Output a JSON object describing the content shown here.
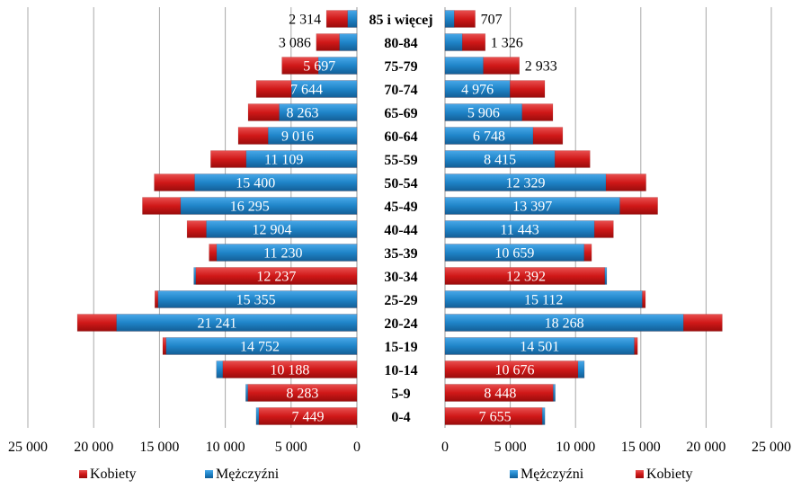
{
  "chart_data": {
    "type": "bar",
    "categories": [
      "0-4",
      "5-9",
      "10-14",
      "15-19",
      "20-24",
      "25-29",
      "30-34",
      "35-39",
      "40-44",
      "45-49",
      "50-54",
      "55-59",
      "60-64",
      "65-69",
      "70-74",
      "75-79",
      "80-84",
      "85 i więcej"
    ],
    "left_panel": {
      "labeled_series": "Kobiety",
      "series": [
        {
          "name": "Kobiety",
          "values": [
            7449,
            8283,
            10188,
            14752,
            21241,
            15355,
            12237,
            11230,
            12904,
            16295,
            15400,
            11109,
            9016,
            8263,
            7644,
            5697,
            3086,
            2314
          ]
        },
        {
          "name": "Mężczyźni",
          "values": [
            7655,
            8448,
            10676,
            14501,
            18268,
            15112,
            12392,
            10659,
            11443,
            13397,
            12329,
            8415,
            6748,
            5906,
            4976,
            2933,
            1326,
            707
          ]
        }
      ],
      "value_labels": [
        "7 449",
        "8 283",
        "10 188",
        "14 752",
        "21 241",
        "15 355",
        "12 237",
        "11 230",
        "12 904",
        "16 295",
        "15 400",
        "11 109",
        "9 016",
        "8 263",
        "7 644",
        "5 697",
        "3 086",
        "2 314"
      ],
      "xlim": [
        0,
        25000
      ],
      "x_reversed": true,
      "ticks": [
        "25 000",
        "20 000",
        "15 000",
        "10 000",
        "5 000",
        "0"
      ],
      "legend": [
        "Kobiety",
        "Mężczyźni"
      ]
    },
    "right_panel": {
      "labeled_series": "Mężczyźni",
      "series": [
        {
          "name": "Mężczyźni",
          "values": [
            7655,
            8448,
            10676,
            14501,
            18268,
            15112,
            12392,
            10659,
            11443,
            13397,
            12329,
            8415,
            6748,
            5906,
            4976,
            2933,
            1326,
            707
          ]
        },
        {
          "name": "Kobiety",
          "values": [
            7449,
            8283,
            10188,
            14752,
            21241,
            15355,
            12237,
            11230,
            12904,
            16295,
            15400,
            11109,
            9016,
            8263,
            7644,
            5697,
            3086,
            2314
          ]
        }
      ],
      "value_labels": [
        "7 655",
        "8 448",
        "10 676",
        "14 501",
        "18 268",
        "15 112",
        "12 392",
        "10 659",
        "11 443",
        "13 397",
        "12 329",
        "8 415",
        "6 748",
        "5 906",
        "4 976",
        "2 933",
        "1 326",
        "707"
      ],
      "xlim": [
        0,
        25000
      ],
      "ticks": [
        "0",
        "5 000",
        "10 000",
        "15 000",
        "20 000",
        "25 000"
      ],
      "legend": [
        "Mężczyźni",
        "Kobiety"
      ]
    },
    "colors": {
      "Kobiety": "#d42020",
      "Mężczyźni": "#2288cc"
    },
    "grid": true,
    "legend_placement": "bottom"
  }
}
